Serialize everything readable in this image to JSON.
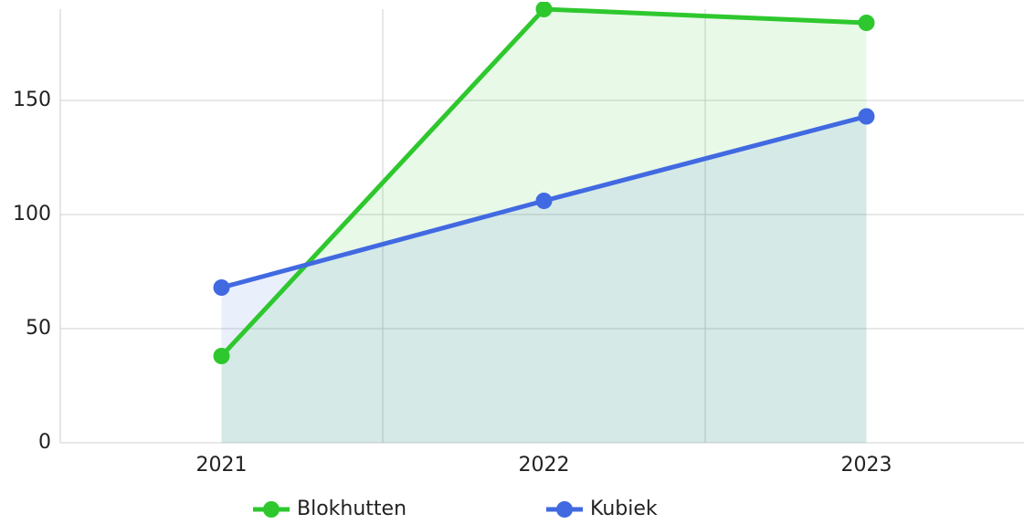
{
  "chart_data": {
    "type": "line",
    "categories": [
      "2021",
      "2022",
      "2023"
    ],
    "series": [
      {
        "name": "Blokhutten",
        "color": "#2ec82e",
        "values": [
          38,
          190,
          184
        ]
      },
      {
        "name": "Kubiek",
        "color": "#4169e1",
        "values": [
          68,
          106,
          143
        ]
      }
    ],
    "ylim": [
      0,
      190
    ],
    "yticks": [
      0,
      50,
      100,
      150
    ],
    "grid": true,
    "fill": true,
    "legend": "bottom"
  }
}
